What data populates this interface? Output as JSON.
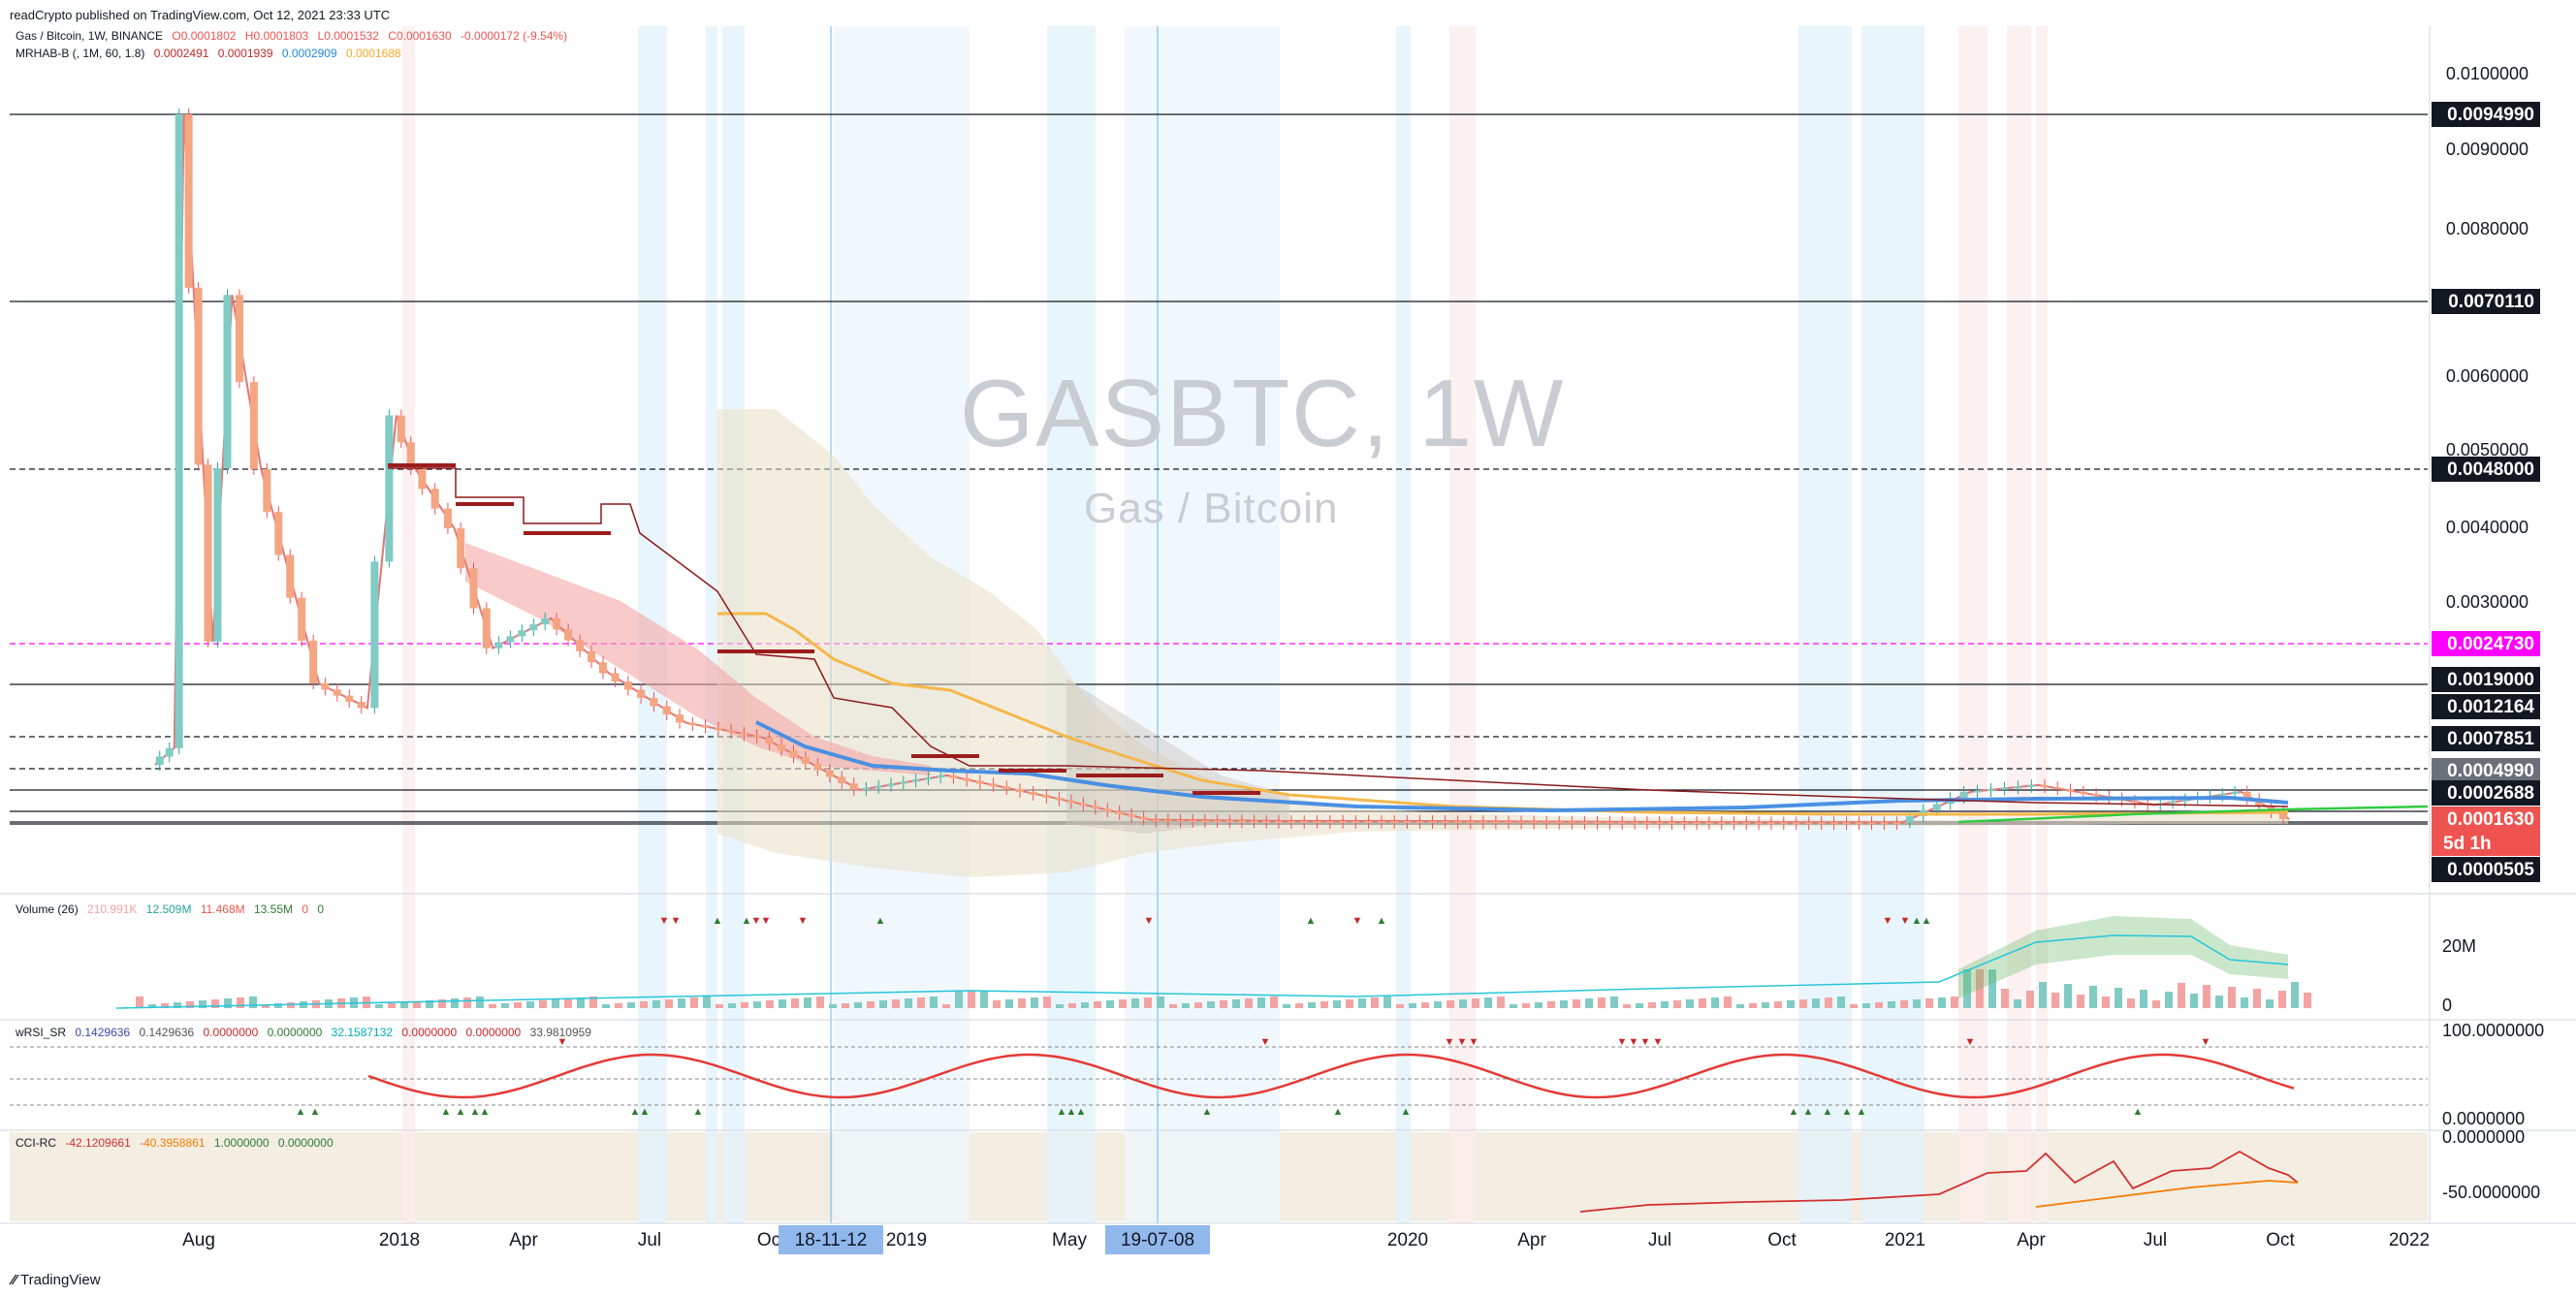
{
  "published": "readCrypto published on TradingView.com, Oct 12, 2021 23:33 UTC",
  "watermark": {
    "symbol": "GASBTC, 1W",
    "description": "Gas / Bitcoin"
  },
  "footer": {
    "brand": "TradingView",
    "icon": "tradingview-logo-icon"
  },
  "colors": {
    "up": "#26a69a",
    "down": "#ef5350",
    "magenta": "#ff00ff",
    "blue": "#2962ff",
    "orange": "#f5a623",
    "green": "#2e7d32"
  },
  "legend_main": {
    "symbol": "Gas / Bitcoin, 1W, BINANCE",
    "open": "O0.0001802",
    "high": "H0.0001803",
    "low": "L0.0001532",
    "close": "C0.0001630",
    "change": "-0.0000172 (-9.54%)"
  },
  "legend_indicator": {
    "name": "MRHAB-B (, 1M, 60, 1.8)",
    "values": [
      "0.0002491",
      "0.0001939",
      "0.0002909",
      "0.0001688"
    ]
  },
  "legend_volume": {
    "name": "Volume (26)",
    "values": [
      "210.991K",
      "12.509M",
      "11.468M",
      "13.55M",
      "0",
      "0"
    ]
  },
  "legend_wrsi": {
    "name": "wRSI_SR",
    "values": [
      "0.1429636",
      "0.1429636",
      "0.0000000",
      "0.0000000",
      "32.1587132",
      "0.0000000",
      "0.0000000",
      "33.9810959"
    ]
  },
  "legend_cci": {
    "name": "CCI-RC",
    "values": [
      "-42.1209661",
      "-40.3958861",
      "1.0000000",
      "0.0000000"
    ]
  },
  "time_axis": {
    "labels": [
      "Aug",
      "2018",
      "Apr",
      "Jul",
      "Oc",
      "2019",
      "May",
      "2020",
      "Apr",
      "Jul",
      "Oct",
      "2021",
      "Apr",
      "Jul",
      "Oct",
      "2022"
    ],
    "highlighted": [
      "18-11-12",
      "19-07-08"
    ]
  },
  "price_axis": {
    "ticks": [
      "0.0100000",
      "0.0090000",
      "0.0080000",
      "0.0060000",
      "0.0050000",
      "0.0040000",
      "0.0030000"
    ],
    "labels": [
      {
        "text": "0.0094990",
        "style": "black"
      },
      {
        "text": "0.0070110",
        "style": "black"
      },
      {
        "text": "0.0048000",
        "style": "black"
      },
      {
        "text": "0.0024730",
        "style": "magenta"
      },
      {
        "text": "0.0019000",
        "style": "black"
      },
      {
        "text": "0.0012164",
        "style": "black"
      },
      {
        "text": "0.0007851",
        "style": "black"
      },
      {
        "text": "0.0004990",
        "style": "gray"
      },
      {
        "text": "0.0002688",
        "style": "black"
      },
      {
        "text": "0.0001630",
        "style": "red"
      },
      {
        "text": "5d 1h",
        "style": "red"
      },
      {
        "text": "0.0000505",
        "style": "black"
      }
    ]
  },
  "volume_axis": {
    "ticks": [
      "20M",
      "0"
    ]
  },
  "wrsi_axis": {
    "ticks": [
      "100.0000000",
      "0.0000000"
    ]
  },
  "cci_axis": {
    "ticks": [
      "0.0000000",
      "-50.0000000"
    ]
  },
  "chart_data": {
    "type": "candlestick",
    "title": "GASBTC, 1W",
    "subtitle": "Gas / Bitcoin",
    "x_range": [
      "2017-07",
      "2022-01"
    ],
    "y_range": [
      0.0,
      0.0103
    ],
    "last_close": 0.000163,
    "levels": [
      0.009499,
      0.007011,
      0.0048,
      0.002473,
      0.0019,
      0.0012164,
      0.0007851,
      0.000499,
      0.0002688,
      0.000163,
      5.05e-05
    ],
    "price_path": [
      [
        "2017-07-17",
        0.00055
      ],
      [
        "2017-07-31",
        0.0007
      ],
      [
        "2017-08-07",
        0.0095
      ],
      [
        "2017-08-14",
        0.0072
      ],
      [
        "2017-08-28",
        0.0025
      ],
      [
        "2017-09-11",
        0.0071
      ],
      [
        "2017-10-02",
        0.0048
      ],
      [
        "2017-11-13",
        0.0018
      ],
      [
        "2017-12-18",
        0.0012
      ],
      [
        "2018-01-08",
        0.0055
      ],
      [
        "2018-01-22",
        0.0048
      ],
      [
        "2018-02-19",
        0.004
      ],
      [
        "2018-03-19",
        0.0024
      ],
      [
        "2018-04-30",
        0.0028
      ],
      [
        "2018-06-11",
        0.002
      ],
      [
        "2018-08-06",
        0.001
      ],
      [
        "2018-10-01",
        0.0008
      ],
      [
        "2018-12-10",
        0.0003
      ],
      [
        "2019-02-11",
        0.00045
      ],
      [
        "2019-04-29",
        0.00025
      ],
      [
        "2019-07-08",
        0.00015
      ],
      [
        "2019-10-14",
        0.00012
      ],
      [
        "2020-01-06",
        0.00012
      ],
      [
        "2020-06-01",
        0.0001
      ],
      [
        "2020-10-05",
        9e-05
      ],
      [
        "2021-01-04",
        9e-05
      ],
      [
        "2021-02-22",
        0.00028
      ],
      [
        "2021-04-12",
        0.00035
      ],
      [
        "2021-07-05",
        0.00022
      ],
      [
        "2021-09-06",
        0.00028
      ],
      [
        "2021-10-11",
        0.000163
      ]
    ],
    "volume_ylim": [
      0,
      30000000
    ],
    "wrsi_ylim": [
      0,
      100
    ],
    "cci_ylim": [
      -70,
      0
    ]
  }
}
